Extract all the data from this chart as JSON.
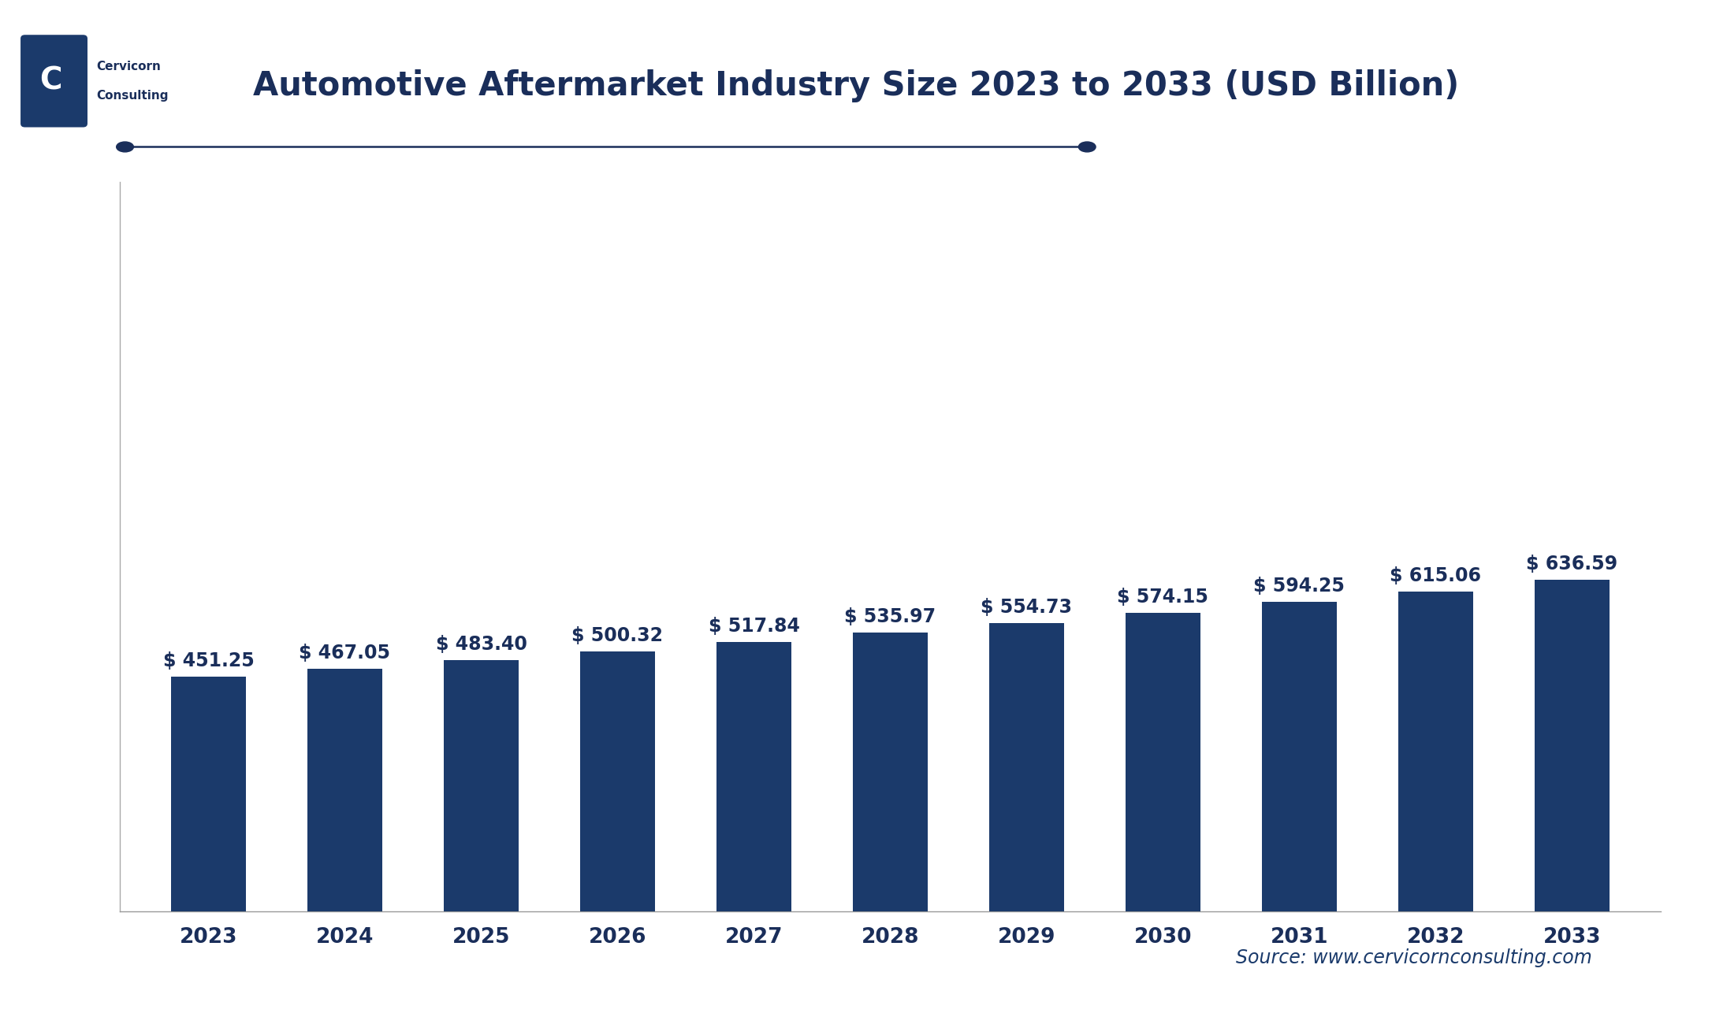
{
  "title": "Automotive Aftermarket Industry Size 2023 to 2033 (USD Billion)",
  "categories": [
    "2023",
    "2024",
    "2025",
    "2026",
    "2027",
    "2028",
    "2029",
    "2030",
    "2031",
    "2032",
    "2033"
  ],
  "values": [
    451.25,
    467.05,
    483.4,
    500.32,
    517.84,
    535.97,
    554.73,
    574.15,
    594.25,
    615.06,
    636.59
  ],
  "labels": [
    "$ 451.25",
    "$ 467.05",
    "$ 483.40",
    "$ 500.32",
    "$ 517.84",
    "$ 535.97",
    "$ 554.73",
    "$ 574.15",
    "$ 594.25",
    "$ 615.06",
    "$ 636.59"
  ],
  "bar_color": "#1b3a6b",
  "background_color": "#ffffff",
  "title_color": "#1a2e5a",
  "label_color": "#1a2e5a",
  "tick_color": "#1a2e5a",
  "source_text": "Source: www.cervicornconsulting.com",
  "source_color": "#1a3a6b",
  "ylim": [
    0,
    1400
  ],
  "title_fontsize": 30,
  "label_fontsize": 17,
  "tick_fontsize": 19,
  "source_fontsize": 17,
  "bar_width": 0.55,
  "dot_line_color": "#1a2e5a",
  "left_border_color": "#aaaaaa"
}
